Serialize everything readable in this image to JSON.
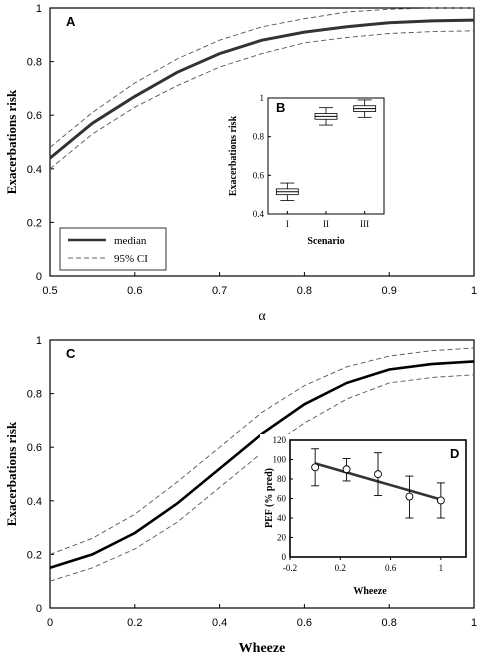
{
  "chart_data": [
    {
      "panel": "A",
      "type": "line",
      "xlabel": "α",
      "ylabel": "Exacerbations risk",
      "xlim": [
        0.5,
        1.0
      ],
      "ylim": [
        0,
        1
      ],
      "xticks": [
        "0.5",
        "0.6",
        "0.7",
        "0.8",
        "0.9",
        "1"
      ],
      "yticks": [
        "0",
        "0.2",
        "0.4",
        "0.6",
        "0.8",
        "1"
      ],
      "legend": {
        "placement": "bottom-left",
        "entries": [
          "median",
          "95% CI"
        ]
      },
      "x": [
        0.5,
        0.55,
        0.6,
        0.65,
        0.7,
        0.75,
        0.8,
        0.85,
        0.9,
        0.95,
        1.0
      ],
      "series": [
        {
          "name": "median",
          "style": "solid",
          "values": [
            0.44,
            0.57,
            0.67,
            0.76,
            0.83,
            0.88,
            0.91,
            0.93,
            0.945,
            0.952,
            0.955
          ]
        },
        {
          "name": "95% CI",
          "style": "dashed",
          "values": [
            0.48,
            0.61,
            0.72,
            0.81,
            0.88,
            0.93,
            0.96,
            0.985,
            0.995,
            1.0,
            1.0
          ]
        },
        {
          "name": "95% CI lower",
          "style": "dashed",
          "values": [
            0.4,
            0.53,
            0.63,
            0.71,
            0.78,
            0.83,
            0.87,
            0.89,
            0.905,
            0.912,
            0.915
          ]
        }
      ]
    },
    {
      "panel": "B",
      "type": "box",
      "xlabel": "Scenario",
      "ylabel": "Exacerbations risk",
      "ylim": [
        0.4,
        1.0
      ],
      "yticks": [
        "0.4",
        "0.6",
        "0.8",
        "1"
      ],
      "categories": [
        "I",
        "II",
        "III"
      ],
      "boxes": [
        {
          "category": "I",
          "min": 0.47,
          "q1": 0.5,
          "median": 0.515,
          "q3": 0.53,
          "max": 0.56
        },
        {
          "category": "II",
          "min": 0.86,
          "q1": 0.89,
          "median": 0.905,
          "q3": 0.92,
          "max": 0.95
        },
        {
          "category": "III",
          "min": 0.9,
          "q1": 0.93,
          "median": 0.945,
          "q3": 0.96,
          "max": 0.99
        }
      ]
    },
    {
      "panel": "C",
      "type": "line",
      "xlabel": "Wheeze",
      "ylabel": "Exacerbations risk",
      "xlim": [
        0,
        1
      ],
      "ylim": [
        0,
        1
      ],
      "xticks": [
        "0",
        "0.2",
        "0.4",
        "0.6",
        "0.8",
        "1"
      ],
      "yticks": [
        "0",
        "0.2",
        "0.4",
        "0.6",
        "0.8",
        "1"
      ],
      "x": [
        0.0,
        0.1,
        0.2,
        0.3,
        0.4,
        0.5,
        0.6,
        0.7,
        0.8,
        0.9,
        1.0
      ],
      "series": [
        {
          "style": "solid",
          "values": [
            0.15,
            0.2,
            0.28,
            0.39,
            0.52,
            0.65,
            0.76,
            0.84,
            0.89,
            0.91,
            0.92
          ]
        },
        {
          "style": "dashed",
          "values": [
            0.2,
            0.26,
            0.35,
            0.47,
            0.6,
            0.73,
            0.83,
            0.9,
            0.94,
            0.96,
            0.97
          ]
        },
        {
          "style": "dashed",
          "values": [
            0.1,
            0.15,
            0.22,
            0.32,
            0.45,
            0.58,
            0.69,
            0.78,
            0.84,
            0.86,
            0.87
          ]
        }
      ]
    },
    {
      "panel": "D",
      "type": "scatter",
      "xlabel": "Wheeze",
      "ylabel": "PEF (% pred)",
      "xlim": [
        -0.2,
        1.2
      ],
      "ylim": [
        0,
        120
      ],
      "xticks": [
        "-0.2",
        "0.2",
        "0.6",
        "1"
      ],
      "xtick_values": [
        -0.2,
        0.2,
        0.6,
        1.0
      ],
      "yticks": [
        "0",
        "20",
        "40",
        "60",
        "80",
        "100",
        "120"
      ],
      "points": [
        {
          "x": 0.0,
          "y": 92,
          "err_low": 73,
          "err_high": 111
        },
        {
          "x": 0.25,
          "y": 90,
          "err_low": 78,
          "err_high": 101
        },
        {
          "x": 0.5,
          "y": 85,
          "err_low": 63,
          "err_high": 107
        },
        {
          "x": 0.75,
          "y": 62,
          "err_low": 40,
          "err_high": 83
        },
        {
          "x": 1.0,
          "y": 58,
          "err_low": 40,
          "err_high": 76
        }
      ],
      "fit": {
        "x": [
          0.0,
          1.0
        ],
        "y": [
          96,
          59
        ]
      }
    }
  ]
}
